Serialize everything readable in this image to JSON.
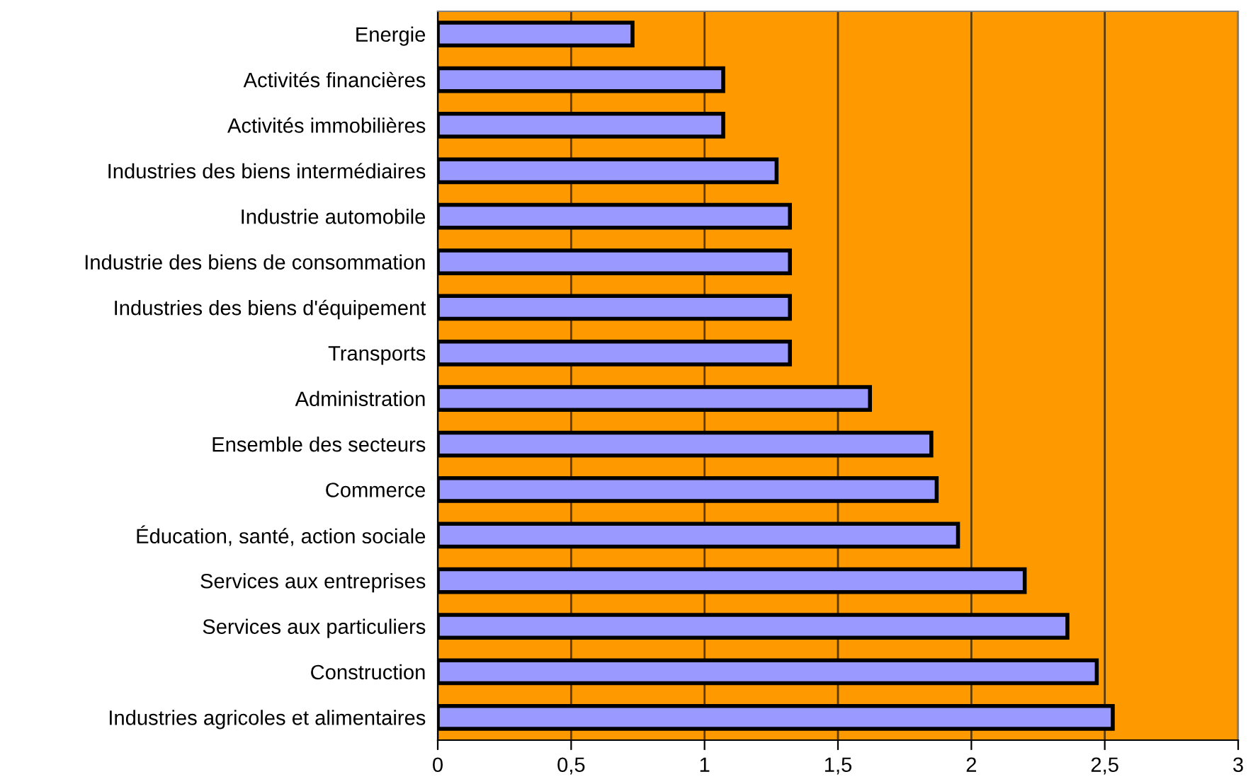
{
  "chart_data": {
    "type": "bar",
    "orientation": "horizontal",
    "categories": [
      "Energie",
      "Activités financières",
      "Activités immobilières",
      "Industries des biens intermédiaires",
      "Industrie automobile",
      "Industrie des biens de consommation",
      "Industries des biens d'équipement",
      "Transports",
      "Administration",
      "Ensemble des secteurs",
      "Commerce",
      "Éducation, santé, action sociale",
      "Services aux entreprises",
      "Services aux particuliers",
      "Construction",
      "Industries agricoles et alimentaires"
    ],
    "values": [
      0.73,
      1.07,
      1.07,
      1.27,
      1.32,
      1.32,
      1.32,
      1.32,
      1.62,
      1.85,
      1.87,
      1.95,
      2.2,
      2.36,
      2.47,
      2.53
    ],
    "color": "#9999ff",
    "xlim": [
      0,
      3
    ],
    "xticks": [
      0,
      {
        "value": 0.5,
        "label": "0,5"
      },
      1,
      {
        "value": 1.5,
        "label": "1,5"
      },
      2,
      {
        "value": 2.5,
        "label": "2,5"
      },
      3
    ],
    "grid": "x"
  }
}
